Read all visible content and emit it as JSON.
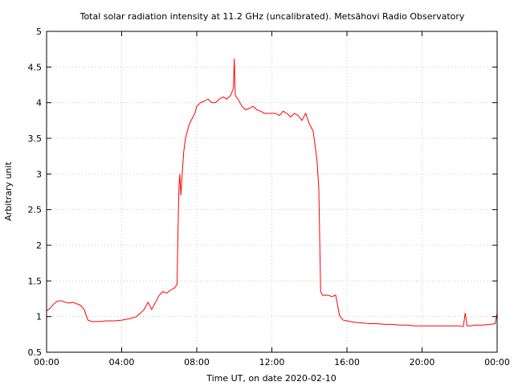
{
  "chart_data": {
    "type": "line",
    "title": "Total solar radiation intensity at 11.2 GHz (uncalibrated). Metsähovi Radio Observatory",
    "xlabel": "Time UT, on date 2020-02-10",
    "ylabel": "Arbitrary unit",
    "xlim": [
      0,
      24
    ],
    "ylim": [
      0.5,
      5
    ],
    "grid": true,
    "x_ticks": [
      {
        "value": 0,
        "label": "00:00"
      },
      {
        "value": 4,
        "label": "04:00"
      },
      {
        "value": 8,
        "label": "08:00"
      },
      {
        "value": 12,
        "label": "12:00"
      },
      {
        "value": 16,
        "label": "16:00"
      },
      {
        "value": 20,
        "label": "20:00"
      },
      {
        "value": 24,
        "label": "00:00"
      }
    ],
    "y_ticks": [
      {
        "value": 0.5,
        "label": "0.5"
      },
      {
        "value": 1,
        "label": "1"
      },
      {
        "value": 1.5,
        "label": "1.5"
      },
      {
        "value": 2,
        "label": "2"
      },
      {
        "value": 2.5,
        "label": "2.5"
      },
      {
        "value": 3,
        "label": "3"
      },
      {
        "value": 3.5,
        "label": "3.5"
      },
      {
        "value": 4,
        "label": "4"
      },
      {
        "value": 4.5,
        "label": "4.5"
      },
      {
        "value": 5,
        "label": "5"
      }
    ],
    "series": [
      {
        "color": "#ff0000",
        "x": [
          0,
          0.2,
          0.4,
          0.6,
          0.8,
          1.0,
          1.2,
          1.4,
          1.6,
          1.8,
          2.0,
          2.2,
          2.4,
          2.8,
          3.2,
          3.6,
          4.0,
          4.4,
          4.8,
          5.0,
          5.2,
          5.4,
          5.6,
          5.8,
          6.0,
          6.2,
          6.4,
          6.6,
          6.8,
          6.95,
          7.0,
          7.05,
          7.1,
          7.15,
          7.2,
          7.3,
          7.4,
          7.5,
          7.6,
          7.7,
          7.8,
          7.9,
          8.0,
          8.2,
          8.4,
          8.6,
          8.8,
          9.0,
          9.2,
          9.4,
          9.6,
          9.8,
          9.95,
          10.0,
          10.05,
          10.2,
          10.4,
          10.6,
          10.8,
          11.0,
          11.2,
          11.4,
          11.6,
          11.8,
          12.0,
          12.2,
          12.4,
          12.6,
          12.8,
          13.0,
          13.2,
          13.4,
          13.6,
          13.8,
          14.0,
          14.2,
          14.4,
          14.5,
          14.6,
          14.7,
          14.8,
          15.0,
          15.2,
          15.4,
          15.6,
          15.7,
          15.8,
          16.0,
          16.4,
          16.8,
          17.2,
          17.6,
          18.0,
          18.4,
          18.8,
          19.2,
          19.6,
          20.0,
          20.4,
          20.8,
          21.2,
          21.6,
          22.0,
          22.2,
          22.3,
          22.4,
          22.6,
          22.8,
          23.2,
          23.6,
          23.9,
          24.0
        ],
        "values": [
          1.08,
          1.12,
          1.18,
          1.22,
          1.22,
          1.2,
          1.19,
          1.2,
          1.18,
          1.16,
          1.1,
          0.95,
          0.93,
          0.93,
          0.94,
          0.94,
          0.95,
          0.97,
          1.0,
          1.05,
          1.1,
          1.2,
          1.1,
          1.2,
          1.3,
          1.35,
          1.33,
          1.37,
          1.4,
          1.45,
          2.2,
          2.8,
          3.0,
          2.7,
          2.9,
          3.3,
          3.5,
          3.6,
          3.7,
          3.75,
          3.8,
          3.85,
          3.95,
          4.0,
          4.02,
          4.05,
          4.0,
          4.0,
          4.05,
          4.08,
          4.05,
          4.1,
          4.2,
          4.62,
          4.1,
          4.05,
          3.95,
          3.9,
          3.92,
          3.95,
          3.9,
          3.88,
          3.85,
          3.85,
          3.85,
          3.85,
          3.82,
          3.88,
          3.85,
          3.8,
          3.85,
          3.82,
          3.75,
          3.85,
          3.7,
          3.6,
          3.2,
          2.8,
          1.35,
          1.3,
          1.3,
          1.3,
          1.28,
          1.3,
          1.02,
          0.98,
          0.95,
          0.94,
          0.92,
          0.91,
          0.9,
          0.9,
          0.89,
          0.89,
          0.88,
          0.88,
          0.87,
          0.87,
          0.87,
          0.87,
          0.87,
          0.87,
          0.87,
          0.86,
          1.05,
          0.87,
          0.87,
          0.88,
          0.88,
          0.89,
          0.9,
          1.05
        ]
      }
    ]
  }
}
